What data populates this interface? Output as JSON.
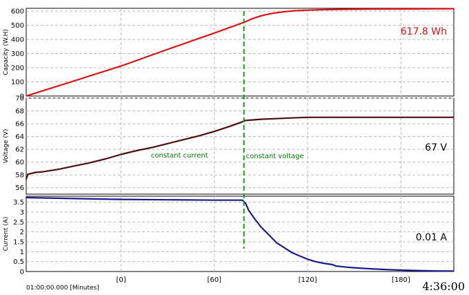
{
  "chart_data": [
    {
      "type": "line",
      "ylabel": "Capacity (W.H)",
      "ylim": [
        0,
        620
      ],
      "yticks": [
        0,
        100,
        200,
        300,
        400,
        500,
        600
      ],
      "readout": "617.8 Wh",
      "color": "#dd1111",
      "series": [
        {
          "x": [
            -61,
            0,
            30,
            60,
            80,
            84,
            88,
            92,
            96,
            100,
            106,
            112,
            120,
            130,
            140,
            160,
            180,
            200,
            214
          ],
          "values": [
            0,
            212,
            330,
            445,
            525,
            545,
            560,
            572,
            582,
            589,
            597,
            603,
            607,
            610,
            612,
            614,
            615,
            616,
            617
          ]
        }
      ]
    },
    {
      "type": "line",
      "ylabel": "Voltage (V)",
      "ylim": [
        55,
        70
      ],
      "yticks": [
        56,
        58,
        60,
        62,
        64,
        66,
        68,
        70
      ],
      "readout": "67 V",
      "color": "#4a0f0f",
      "annotations": [
        "constant current",
        "constant voltage"
      ],
      "series": [
        {
          "x": [
            -61,
            -60,
            -55,
            -50,
            -40,
            -30,
            -20,
            -10,
            0,
            10,
            20,
            30,
            40,
            50,
            60,
            70,
            78,
            80,
            90,
            100,
            110,
            120,
            140,
            160,
            180,
            200,
            214
          ],
          "values": [
            57.3,
            58.1,
            58.4,
            58.5,
            58.9,
            59.4,
            59.9,
            60.5,
            61.2,
            61.8,
            62.3,
            62.9,
            63.5,
            64.1,
            64.8,
            65.6,
            66.3,
            66.5,
            66.7,
            66.8,
            66.9,
            67.0,
            67.0,
            67.0,
            67.0,
            67.0,
            67.0
          ]
        }
      ]
    },
    {
      "type": "line",
      "ylabel": "Current (A)",
      "ylim": [
        0,
        3.8
      ],
      "yticks": [
        0,
        0.5,
        1,
        1.5,
        2,
        2.5,
        3,
        3.5
      ],
      "readout": "0.01 A",
      "color": "#1a1a8c",
      "series": [
        {
          "x": [
            -61,
            -30,
            0,
            30,
            60,
            78,
            80,
            82,
            86,
            90,
            95,
            100,
            105,
            110,
            115,
            120,
            125,
            130,
            136,
            138,
            145,
            150,
            160,
            170,
            180,
            190,
            200,
            214
          ],
          "values": [
            3.73,
            3.68,
            3.64,
            3.62,
            3.6,
            3.6,
            3.45,
            3.1,
            2.65,
            2.25,
            1.85,
            1.45,
            1.2,
            0.95,
            0.78,
            0.62,
            0.5,
            0.42,
            0.35,
            0.28,
            0.22,
            0.19,
            0.14,
            0.1,
            0.07,
            0.05,
            0.03,
            0.02
          ]
        }
      ]
    }
  ],
  "x_axis": {
    "xlim": [
      -61,
      214
    ],
    "ticks": [
      0,
      60,
      120,
      180
    ],
    "tick_labels": [
      "[0]",
      "[60]",
      "[120]",
      "[180]"
    ],
    "origin_label": "01:00:00.000 [Minutes]",
    "transition_x": 79
  },
  "clock": "4:36:00",
  "colors": {
    "grid": "#b8b8b8",
    "transition_line": "#10a010",
    "annotation": "#008000"
  }
}
